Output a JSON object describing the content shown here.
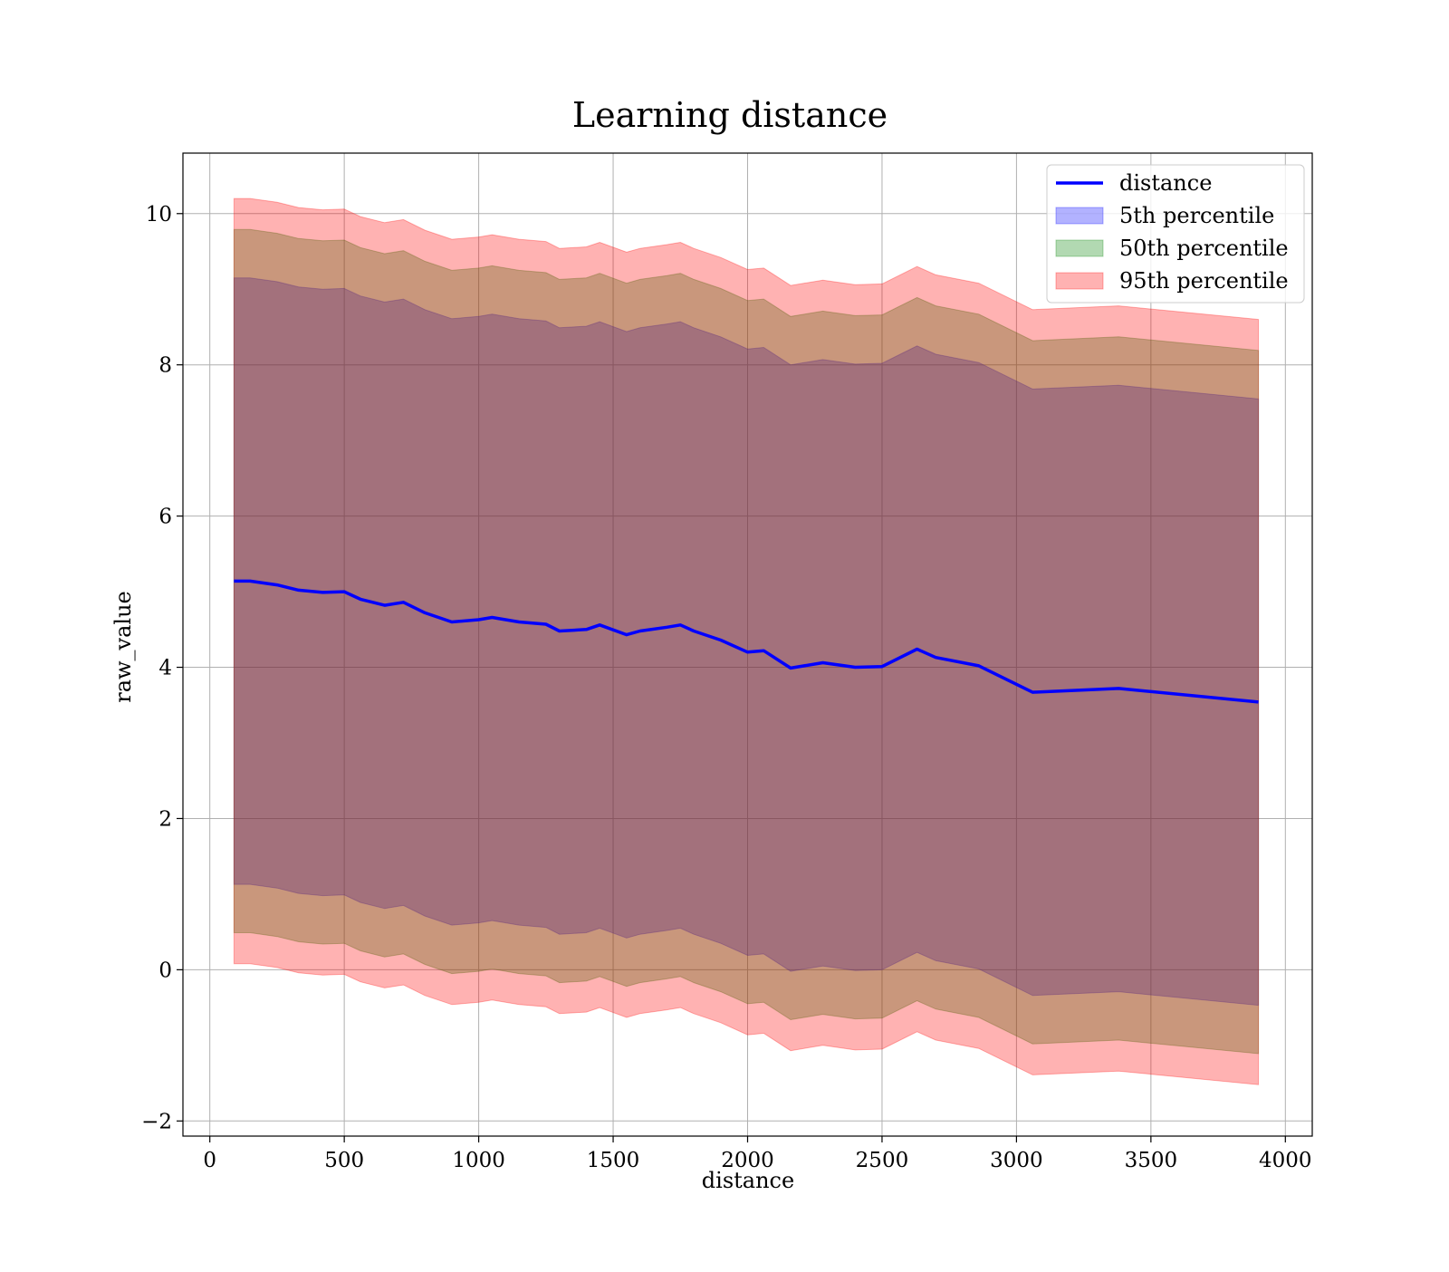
{
  "chart_data": {
    "type": "area",
    "title": "Learning distance",
    "xlabel": "distance",
    "ylabel": "raw_value",
    "xlim": [
      -100,
      4100
    ],
    "ylim": [
      -2.2,
      10.8
    ],
    "xticks": [
      0,
      500,
      1000,
      1500,
      2000,
      2500,
      3000,
      3500,
      4000
    ],
    "yticks": [
      -2,
      0,
      2,
      4,
      6,
      8,
      10
    ],
    "ytick_labels": [
      "−2",
      "0",
      "2",
      "4",
      "6",
      "8",
      "10"
    ],
    "grid": true,
    "legend_position": "top-right",
    "x": [
      90,
      150,
      250,
      330,
      420,
      500,
      560,
      650,
      720,
      800,
      900,
      1000,
      1050,
      1150,
      1250,
      1300,
      1400,
      1450,
      1550,
      1600,
      1700,
      1750,
      1800,
      1900,
      2000,
      2060,
      2160,
      2280,
      2400,
      2500,
      2630,
      2700,
      2860,
      3060,
      3380,
      3900
    ],
    "line": {
      "name": "distance",
      "color": "#0000ff",
      "values": [
        5.14,
        5.14,
        5.09,
        5.02,
        4.99,
        5.0,
        4.9,
        4.82,
        4.86,
        4.72,
        4.6,
        4.63,
        4.66,
        4.6,
        4.57,
        4.48,
        4.5,
        4.56,
        4.43,
        4.48,
        4.53,
        4.56,
        4.48,
        4.36,
        4.2,
        4.22,
        3.99,
        4.06,
        4.0,
        4.01,
        4.24,
        4.13,
        4.02,
        3.67,
        3.72,
        3.54
      ]
    },
    "bands": [
      {
        "name": "5th percentile",
        "color": "#0000ff",
        "opacity": 0.3,
        "lower": [
          1.13,
          1.13,
          1.08,
          1.01,
          0.98,
          0.99,
          0.89,
          0.81,
          0.85,
          0.71,
          0.59,
          0.62,
          0.65,
          0.59,
          0.56,
          0.47,
          0.49,
          0.55,
          0.42,
          0.47,
          0.52,
          0.55,
          0.47,
          0.35,
          0.19,
          0.21,
          -0.02,
          0.05,
          -0.01,
          0.0,
          0.23,
          0.12,
          0.01,
          -0.34,
          -0.29,
          -0.47
        ],
        "upper": [
          9.15,
          9.15,
          9.1,
          9.03,
          9.0,
          9.01,
          8.91,
          8.83,
          8.87,
          8.73,
          8.61,
          8.64,
          8.67,
          8.61,
          8.58,
          8.49,
          8.51,
          8.57,
          8.44,
          8.49,
          8.54,
          8.57,
          8.49,
          8.37,
          8.21,
          8.23,
          8.0,
          8.07,
          8.01,
          8.02,
          8.25,
          8.14,
          8.03,
          7.68,
          7.73,
          7.55
        ]
      },
      {
        "name": "50th percentile",
        "color": "#008000",
        "opacity": 0.3,
        "lower": [
          0.49,
          0.49,
          0.44,
          0.37,
          0.34,
          0.35,
          0.25,
          0.17,
          0.21,
          0.07,
          -0.05,
          -0.02,
          0.01,
          -0.05,
          -0.08,
          -0.17,
          -0.15,
          -0.09,
          -0.22,
          -0.17,
          -0.12,
          -0.09,
          -0.17,
          -0.29,
          -0.45,
          -0.43,
          -0.66,
          -0.59,
          -0.65,
          -0.64,
          -0.41,
          -0.52,
          -0.63,
          -0.98,
          -0.93,
          -1.11
        ],
        "upper": [
          9.79,
          9.79,
          9.74,
          9.67,
          9.64,
          9.65,
          9.55,
          9.47,
          9.51,
          9.37,
          9.25,
          9.28,
          9.31,
          9.25,
          9.22,
          9.13,
          9.15,
          9.21,
          9.08,
          9.13,
          9.18,
          9.21,
          9.13,
          9.01,
          8.85,
          8.87,
          8.64,
          8.71,
          8.65,
          8.66,
          8.89,
          8.78,
          8.67,
          8.32,
          8.37,
          8.19
        ]
      },
      {
        "name": "95th percentile",
        "color": "#ff0000",
        "opacity": 0.3,
        "lower": [
          0.08,
          0.08,
          0.03,
          -0.04,
          -0.07,
          -0.06,
          -0.16,
          -0.24,
          -0.2,
          -0.34,
          -0.46,
          -0.43,
          -0.4,
          -0.46,
          -0.49,
          -0.58,
          -0.56,
          -0.5,
          -0.63,
          -0.58,
          -0.53,
          -0.5,
          -0.58,
          -0.7,
          -0.86,
          -0.84,
          -1.07,
          -1.0,
          -1.06,
          -1.05,
          -0.82,
          -0.93,
          -1.04,
          -1.39,
          -1.34,
          -1.52
        ],
        "upper": [
          10.2,
          10.2,
          10.15,
          10.08,
          10.05,
          10.06,
          9.96,
          9.88,
          9.92,
          9.78,
          9.66,
          9.69,
          9.72,
          9.66,
          9.63,
          9.54,
          9.56,
          9.62,
          9.49,
          9.54,
          9.59,
          9.62,
          9.54,
          9.42,
          9.26,
          9.28,
          9.05,
          9.12,
          9.06,
          9.07,
          9.3,
          9.19,
          9.08,
          8.73,
          8.78,
          8.6
        ]
      }
    ]
  }
}
